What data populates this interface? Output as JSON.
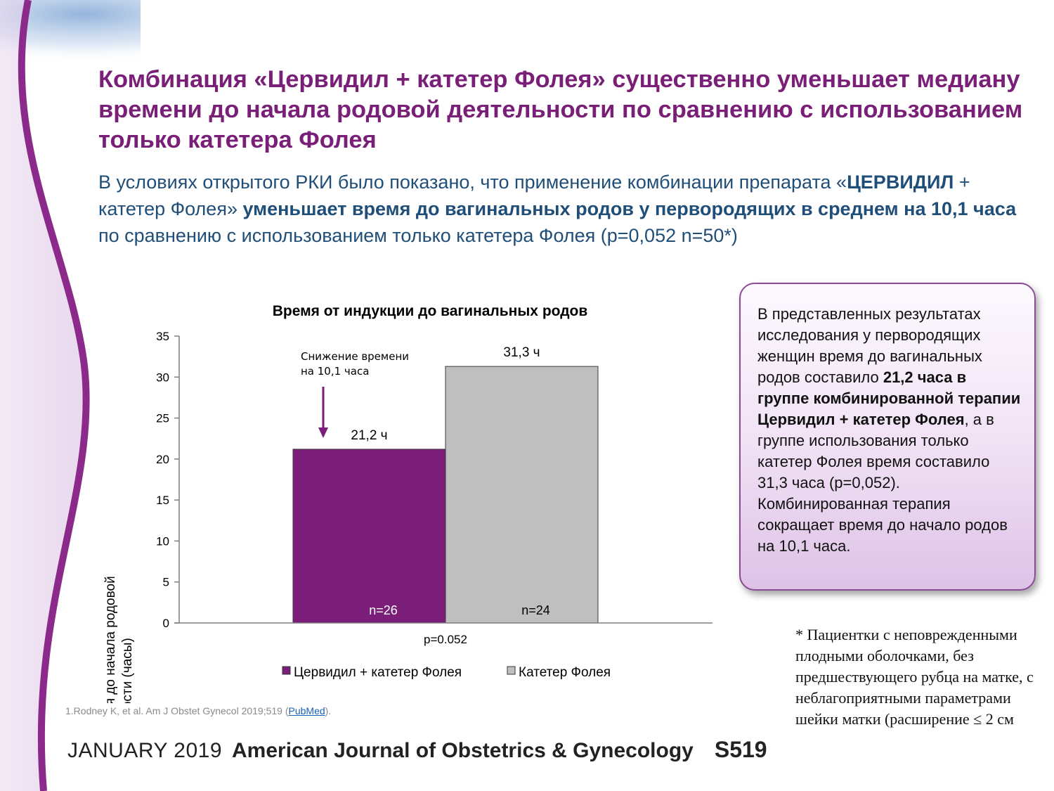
{
  "title": "Комбинация «Цервидил + катетер Фолея» существенно уменьшает медиану времени до начала родовой деятельности по сравнению с использованием только катетера Фолея",
  "subtitle": {
    "p1": "В условиях открытого РКИ  было показано, что применение комбинации  препарата «",
    "b1": "ЦЕРВИДИЛ",
    "p2": " + катетер Фолея» ",
    "b2": "уменьшает время до вагинальных родов у первородящих в среднем на 10,1 часа",
    "p3": " по сравнению с использованием только катетера Фолея (p=0,052 n=50*)"
  },
  "callout": {
    "p1": "В представленных результатах исследования у первородящих женщин время до вагинальных родов составило ",
    "b1": "21,2 часа в группе комбинированной терапии Цервидил + катетер Фолея",
    "p2": ", а в группе использования только катетер Фолея время составило 31,3 часа (р=0,052). Комбинированная терапия сокращает время до начало родов на 10,1 часа."
  },
  "footnote": "* Пациентки с неповрежденными плодными оболочками, без предшествующего рубца на матке, с неблагоприятными параметрами шейки матки (расширение ≤ 2 см",
  "reference": {
    "text": "1.Rodney K, et al. Am J Obstet Gynecol  2019;519 (",
    "link": "PubMed",
    "end": ")."
  },
  "journal": {
    "date": "JANUARY 2019",
    "name": "American Journal of Obstetrics & Gynecology",
    "page": "S519"
  },
  "colors": {
    "title": "#7a1f78",
    "subtitle": "#1f4e79",
    "series_cervidil": "#7b1e7a",
    "series_foley": "#bfbfbf"
  },
  "chart_data": {
    "type": "bar",
    "title": "Время от индукции до вагинальных родов",
    "ylabel": "Среднее время до начала родовой деятельности (часы)",
    "xlabel": "p=0.052",
    "ylim": [
      0,
      35
    ],
    "yticks": [
      0,
      5,
      10,
      15,
      20,
      25,
      30,
      35
    ],
    "series": [
      {
        "name": "Цервидил + катетер Фолея",
        "value": 21.2,
        "label": "21,2 ч",
        "n": "n=26",
        "color": "#7b1e7a"
      },
      {
        "name": "Катетер Фолея",
        "value": 31.3,
        "label": "31,3 ч",
        "n": "n=24",
        "color": "#bfbfbf"
      }
    ],
    "annotation": "Снижение времени на 10,1 часа",
    "legend": "bottom",
    "grid": false
  }
}
